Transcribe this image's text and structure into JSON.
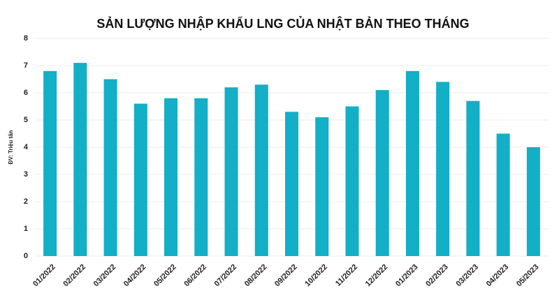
{
  "chart_data": {
    "type": "bar",
    "title": "SẢN LƯỢNG NHẬP KHẨU LNG CỦA NHẬT BẢN THEO THÁNG",
    "y_label": "ĐV: Triệu tấn",
    "categories": [
      "01/2022",
      "02/2022",
      "03/2022",
      "04/2022",
      "05/2022",
      "06/2022",
      "07/2022",
      "08/2022",
      "09/2022",
      "10/2022",
      "11/2022",
      "12/2022",
      "01/2023",
      "02/2023",
      "03/2023",
      "04/2023",
      "05/2023"
    ],
    "values": [
      6.8,
      7.1,
      6.5,
      5.6,
      5.8,
      5.8,
      6.2,
      6.3,
      5.3,
      5.1,
      5.5,
      6.1,
      6.8,
      6.4,
      5.7,
      4.5,
      4.0
    ],
    "color": "#12afc6",
    "ylim": [
      0,
      8
    ],
    "yticks": [
      0,
      1,
      2,
      3,
      4,
      5,
      6,
      7,
      8
    ],
    "grid": true
  }
}
